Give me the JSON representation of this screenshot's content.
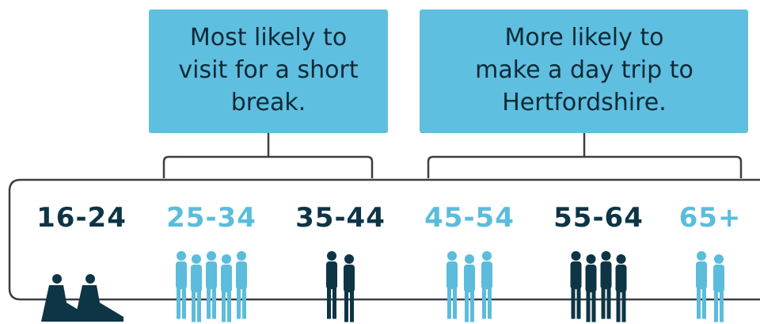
{
  "callouts": [
    {
      "lines": [
        "Most likely to",
        "visit for a short",
        "break."
      ]
    },
    {
      "lines": [
        "More likely to",
        "make a day trip to",
        "Hertfordshire."
      ]
    }
  ],
  "age_groups": [
    {
      "label": "16-24",
      "color": "#0d3545"
    },
    {
      "label": "25-34",
      "color": "#5bbcdc"
    },
    {
      "label": "35-44",
      "color": "#0d3545"
    },
    {
      "label": "45-54",
      "color": "#5bbcdc"
    },
    {
      "label": "55-64",
      "color": "#0d3545"
    },
    {
      "label": "65+",
      "color": "#5bbcdc"
    }
  ]
}
